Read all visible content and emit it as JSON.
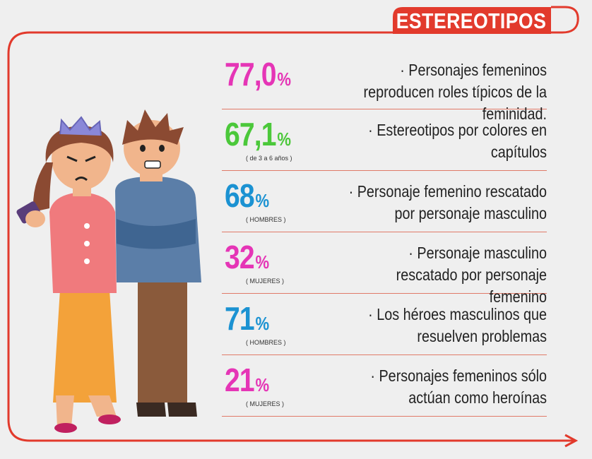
{
  "title": "ESTEREOTIPOS",
  "colors": {
    "accent": "#e23a2c",
    "magenta": "#e535b6",
    "green": "#4bc83a",
    "blue": "#1b92d2"
  },
  "stats": [
    {
      "value": "77,0",
      "unit": "%",
      "note": "",
      "color": "#e535b6",
      "text": "· Personajes femeninos reproducen roles típicos de la feminidad."
    },
    {
      "value": "67,1",
      "unit": "%",
      "note": "( de 3 a 6 años )",
      "color": "#4bc83a",
      "text": "· Estereotipos por colores en capítulos"
    },
    {
      "value": "68",
      "unit": "%",
      "note": "( HOMBRES )",
      "color": "#1b92d2",
      "text": "· Personaje femenino rescatado por personaje masculino"
    },
    {
      "value": "32",
      "unit": "%",
      "note": "( MUJERES )",
      "color": "#e535b6",
      "text": "· Personaje masculino rescatado por personaje femenino"
    },
    {
      "value": "71",
      "unit": "%",
      "note": "( HOMBRES )",
      "color": "#1b92d2",
      "text": "· Los héroes masculinos que resuelven problemas"
    },
    {
      "value": "21",
      "unit": "%",
      "note": "( MUJERES )",
      "color": "#e535b6",
      "text": "· Personajes femeninos sólo actúan como heroínas"
    }
  ]
}
